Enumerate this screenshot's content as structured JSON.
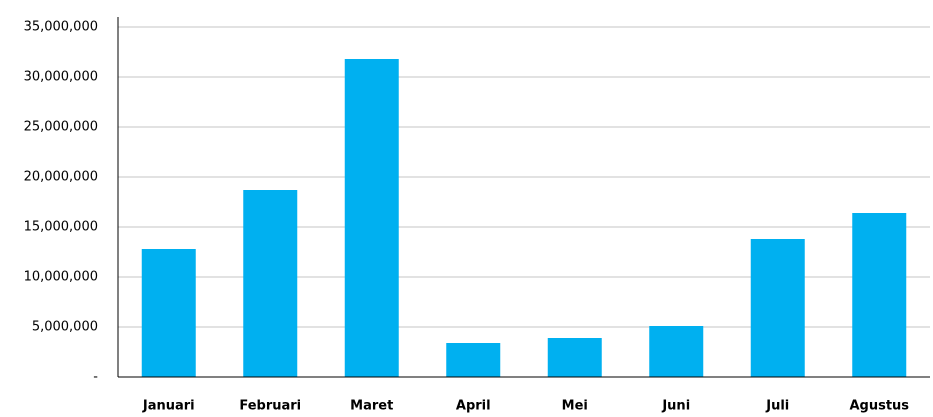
{
  "chart_data": {
    "type": "bar",
    "categories": [
      "Januari",
      "Februari",
      "Maret",
      "April",
      "Mei",
      "Juni",
      "Juli",
      "Agustus"
    ],
    "values": [
      12800000,
      18700000,
      31800000,
      3400000,
      3900000,
      5100000,
      13800000,
      16400000
    ],
    "color": "#00b0f0",
    "ylim": [
      0,
      35000000
    ],
    "yticks": [
      {
        "value": 0,
        "label": "-"
      },
      {
        "value": 5000000,
        "label": "5,000,000"
      },
      {
        "value": 10000000,
        "label": "10,000,000"
      },
      {
        "value": 15000000,
        "label": "15,000,000"
      },
      {
        "value": 20000000,
        "label": "20,000,000"
      },
      {
        "value": 25000000,
        "label": "25,000,000"
      },
      {
        "value": 30000000,
        "label": "30,000,000"
      },
      {
        "value": 35000000,
        "label": "35,000,000"
      }
    ],
    "grid": true
  }
}
